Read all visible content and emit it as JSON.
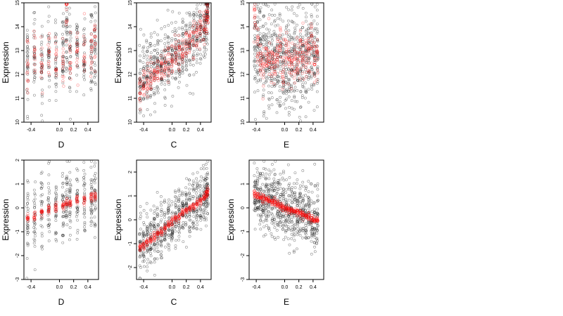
{
  "colors": {
    "observed": "#000000",
    "fitted": "#ff0000",
    "background": "#ffffff"
  },
  "chart_data": [
    {
      "type": "scatter",
      "title": "",
      "xlabel": "D",
      "ylabel": "Expression",
      "xlim": [
        -0.5,
        0.55
      ],
      "ylim": [
        10,
        15
      ],
      "xticks": [
        "-0.4",
        "0.0",
        "0.2",
        "0.4"
      ],
      "yticks": [
        "10",
        "11",
        "12",
        "13",
        "14",
        "15"
      ],
      "x_levels": [
        -0.45,
        -0.35,
        -0.25,
        -0.15,
        -0.05,
        0.05,
        0.1,
        0.15,
        0.25,
        0.35,
        0.45,
        0.5
      ],
      "observed_center": [
        12.6,
        12.7,
        12.5,
        12.8,
        12.5,
        12.9,
        13.4,
        12.6,
        12.9,
        12.9,
        12.7,
        13.1
      ],
      "observed_spread": 0.9,
      "fitted_center": [
        12.4,
        12.8,
        12.6,
        12.9,
        12.6,
        12.7,
        14.5,
        12.5,
        12.8,
        13.0,
        12.6,
        13.2
      ],
      "fitted_spread": 0.6,
      "grid": false,
      "legend": "none"
    },
    {
      "type": "scatter",
      "title": "",
      "xlabel": "C",
      "ylabel": "Expression",
      "xlim": [
        -0.5,
        0.55
      ],
      "ylim": [
        10,
        15
      ],
      "xticks": [
        "-0.4",
        "0.0",
        "0.2",
        "0.4"
      ],
      "yticks": [
        "10",
        "11",
        "12",
        "13",
        "14",
        "15"
      ],
      "x_levels": [
        -0.45,
        -0.4,
        -0.35,
        -0.3,
        -0.25,
        -0.2,
        -0.15,
        -0.1,
        -0.05,
        0.0,
        0.05,
        0.1,
        0.15,
        0.2,
        0.25,
        0.3,
        0.35,
        0.4,
        0.45,
        0.48,
        0.5
      ],
      "observed_center": [
        11.6,
        11.8,
        11.9,
        12.1,
        12.2,
        12.3,
        12.4,
        12.5,
        12.6,
        12.7,
        12.8,
        12.9,
        13.0,
        13.1,
        13.3,
        13.5,
        13.6,
        13.8,
        14.0,
        14.3,
        14.6
      ],
      "observed_spread": 0.7,
      "fitted_center": [
        11.4,
        11.6,
        11.8,
        11.9,
        12.0,
        12.1,
        12.2,
        12.3,
        12.5,
        12.6,
        12.8,
        12.9,
        13.0,
        13.2,
        13.3,
        13.5,
        13.6,
        13.8,
        14.0,
        14.3,
        14.5
      ],
      "fitted_spread": 0.35,
      "grid": false,
      "legend": "none"
    },
    {
      "type": "scatter",
      "title": "",
      "xlabel": "E",
      "ylabel": "Expression",
      "xlim": [
        -0.5,
        0.55
      ],
      "ylim": [
        10,
        15
      ],
      "xticks": [
        "-0.4",
        "0.0",
        "0.2",
        "0.4"
      ],
      "yticks": [
        "10",
        "11",
        "12",
        "13",
        "14",
        "15"
      ],
      "x_levels": [
        -0.42,
        -0.38,
        -0.34,
        -0.3,
        -0.26,
        -0.22,
        -0.18,
        -0.14,
        -0.1,
        -0.06,
        -0.02,
        0.02,
        0.06,
        0.1,
        0.14,
        0.18,
        0.22,
        0.26,
        0.3,
        0.34,
        0.38,
        0.42,
        0.46
      ],
      "observed_center": [
        13.6,
        13.3,
        13.0,
        12.8,
        12.6,
        12.7,
        12.6,
        12.5,
        12.4,
        12.3,
        12.2,
        12.3,
        12.4,
        12.5,
        12.5,
        12.4,
        12.6,
        12.7,
        12.8,
        12.9,
        12.9,
        12.8,
        12.7
      ],
      "observed_spread": 1.0,
      "fitted_center": [
        14.4,
        13.2,
        12.6,
        12.3,
        12.8,
        12.9,
        12.4,
        12.6,
        12.8,
        13.4,
        12.1,
        12.9,
        12.5,
        12.6,
        12.4,
        12.6,
        12.9,
        13.0,
        12.8,
        12.9,
        13.3,
        12.5,
        12.8
      ],
      "fitted_spread": 0.5,
      "grid": false,
      "legend": "none"
    },
    {
      "type": "scatter",
      "title": "",
      "xlabel": "D",
      "ylabel": "Expression",
      "xlim": [
        -0.5,
        0.55
      ],
      "ylim": [
        -3,
        2
      ],
      "xticks": [
        "-0.4",
        "0.0",
        "0.2",
        "0.4"
      ],
      "yticks": [
        "-3",
        "-2",
        "-1",
        "0",
        "1",
        "2"
      ],
      "x_levels": [
        -0.45,
        -0.35,
        -0.25,
        -0.15,
        -0.05,
        0.05,
        0.1,
        0.15,
        0.25,
        0.35,
        0.45,
        0.5
      ],
      "observed_center": [
        -0.3,
        -0.3,
        -0.1,
        0.0,
        0.0,
        0.2,
        0.4,
        0.1,
        0.2,
        0.3,
        0.4,
        0.5
      ],
      "observed_spread": 0.8,
      "fitted_center": [
        -0.45,
        -0.35,
        -0.2,
        -0.1,
        0.0,
        0.1,
        0.2,
        0.2,
        0.3,
        0.35,
        0.45,
        0.5
      ],
      "fitted_spread": 0.1,
      "grid": false,
      "legend": "none"
    },
    {
      "type": "scatter",
      "title": "",
      "xlabel": "C",
      "ylabel": "Expression",
      "xlim": [
        -0.5,
        0.55
      ],
      "ylim": [
        -2.5,
        2.5
      ],
      "xticks": [
        "-0.4",
        "0.0",
        "0.2",
        "0.4"
      ],
      "yticks": [
        "-2",
        "-1",
        "0",
        "1",
        "2"
      ],
      "x_levels": [
        -0.45,
        -0.4,
        -0.35,
        -0.3,
        -0.25,
        -0.2,
        -0.15,
        -0.1,
        -0.05,
        0.0,
        0.05,
        0.1,
        0.15,
        0.2,
        0.25,
        0.3,
        0.35,
        0.4,
        0.45,
        0.48,
        0.5
      ],
      "observed_center": [
        -1.1,
        -1.0,
        -0.9,
        -0.8,
        -0.7,
        -0.6,
        -0.5,
        -0.4,
        -0.2,
        -0.1,
        0.0,
        0.2,
        0.3,
        0.4,
        0.5,
        0.6,
        0.7,
        0.8,
        0.9,
        1.0,
        1.2
      ],
      "observed_spread": 0.6,
      "fitted_center": [
        -1.15,
        -1.05,
        -0.95,
        -0.85,
        -0.7,
        -0.6,
        -0.5,
        -0.35,
        -0.2,
        -0.1,
        0.05,
        0.15,
        0.3,
        0.4,
        0.5,
        0.6,
        0.7,
        0.8,
        0.95,
        1.05,
        1.2
      ],
      "fitted_spread": 0.08,
      "grid": false,
      "legend": "none"
    },
    {
      "type": "scatter",
      "title": "",
      "xlabel": "E",
      "ylabel": "Expression",
      "xlim": [
        -0.5,
        0.55
      ],
      "ylim": [
        -3,
        2
      ],
      "xticks": [
        "-0.4",
        "0.0",
        "0.2",
        "0.4"
      ],
      "yticks": [
        "-3",
        "-2",
        "-1",
        "0",
        "1"
      ],
      "x_levels": [
        -0.42,
        -0.38,
        -0.34,
        -0.3,
        -0.26,
        -0.22,
        -0.18,
        -0.14,
        -0.1,
        -0.06,
        -0.02,
        0.02,
        0.06,
        0.1,
        0.14,
        0.18,
        0.22,
        0.26,
        0.3,
        0.34,
        0.38,
        0.42,
        0.46
      ],
      "observed_center": [
        0.5,
        0.5,
        0.4,
        0.35,
        0.3,
        0.25,
        0.2,
        0.15,
        0.1,
        0.05,
        0.0,
        -0.05,
        -0.1,
        -0.1,
        -0.15,
        -0.2,
        -0.2,
        -0.25,
        -0.3,
        -0.35,
        -0.4,
        -0.45,
        -0.5
      ],
      "observed_spread": 0.7,
      "fitted_center": [
        0.55,
        0.5,
        0.45,
        0.4,
        0.35,
        0.3,
        0.25,
        0.2,
        0.15,
        0.1,
        0.05,
        0.0,
        -0.05,
        -0.1,
        -0.15,
        -0.2,
        -0.25,
        -0.3,
        -0.35,
        -0.4,
        -0.45,
        -0.5,
        -0.55
      ],
      "fitted_spread": 0.08,
      "grid": false,
      "legend": "none"
    }
  ]
}
